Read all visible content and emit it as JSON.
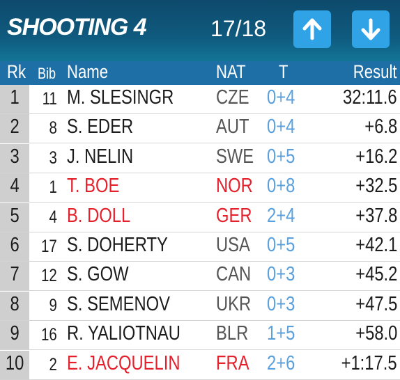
{
  "header": {
    "title": "SHOOTING 4",
    "progress": "17/18"
  },
  "columns": [
    "Rk",
    "Bib",
    "Name",
    "NAT",
    "T",
    "Result"
  ],
  "rows": [
    {
      "rank": "1",
      "bib": "11",
      "name": "M. SLESINGR",
      "nat": "CZE",
      "t": "0+4",
      "result": "32:11.6",
      "color": "#1c1c1c"
    },
    {
      "rank": "2",
      "bib": "8",
      "name": "S. EDER",
      "nat": "AUT",
      "t": "0+4",
      "result": "+6.8",
      "color": "#1c1c1c"
    },
    {
      "rank": "3",
      "bib": "3",
      "name": "J. NELIN",
      "nat": "SWE",
      "t": "0+5",
      "result": "+16.2",
      "color": "#1c1c1c"
    },
    {
      "rank": "4",
      "bib": "1",
      "name": "T. BOE",
      "nat": "NOR",
      "t": "0+8",
      "result": "+32.5",
      "color": "#e3202b"
    },
    {
      "rank": "5",
      "bib": "4",
      "name": "B. DOLL",
      "nat": "GER",
      "t": "2+4",
      "result": "+37.8",
      "color": "#e3202b"
    },
    {
      "rank": "6",
      "bib": "17",
      "name": "S. DOHERTY",
      "nat": "USA",
      "t": "0+5",
      "result": "+42.1",
      "color": "#1c1c1c"
    },
    {
      "rank": "7",
      "bib": "12",
      "name": "S. GOW",
      "nat": "CAN",
      "t": "0+3",
      "result": "+45.2",
      "color": "#1c1c1c"
    },
    {
      "rank": "8",
      "bib": "9",
      "name": "S. SEMENOV",
      "nat": "UKR",
      "t": "0+3",
      "result": "+47.5",
      "color": "#1c1c1c"
    },
    {
      "rank": "9",
      "bib": "16",
      "name": "R. YALIOTNAU",
      "nat": "BLR",
      "t": "1+5",
      "result": "+58.0",
      "color": "#1c1c1c"
    },
    {
      "rank": "10",
      "bib": "2",
      "name": "E. JACQUELIN",
      "nat": "FRA",
      "t": "2+6",
      "result": "+1:17.5",
      "color": "#e3202b"
    }
  ]
}
